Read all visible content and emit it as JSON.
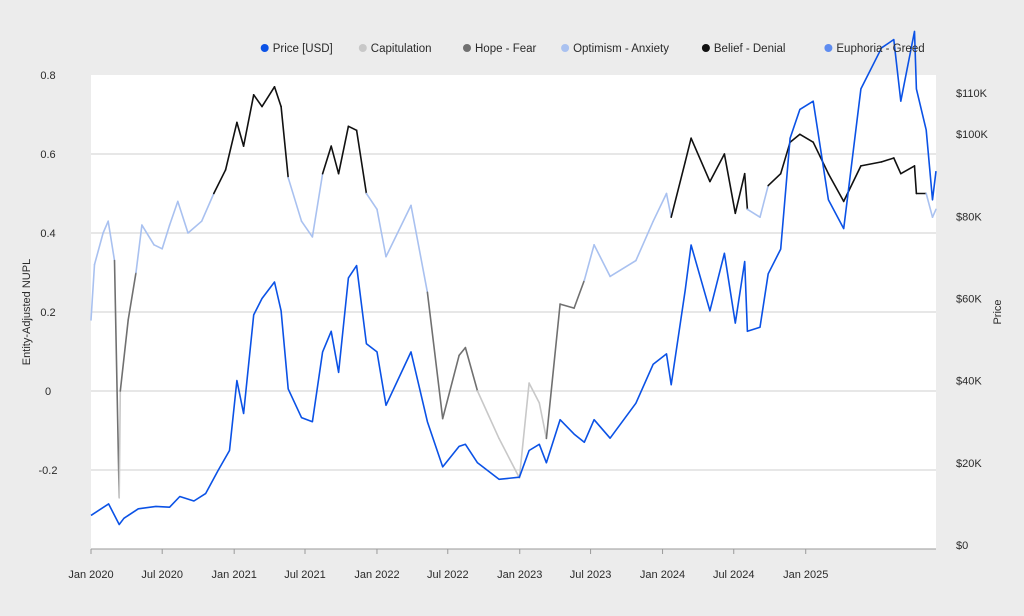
{
  "chart_data": {
    "type": "line",
    "ylabel_left": "Entity-Adjusted NUPL",
    "ylabel_right": "Price",
    "x_ticks": [
      "Jan 2020",
      "Jul 2020",
      "Jan 2021",
      "Jul 2021",
      "Jan 2022",
      "Jul 2022",
      "Jan 2023",
      "Jul 2023",
      "Jan 2024",
      "Jul 2024",
      "Jan 2025"
    ],
    "x_tick_dates": [
      "2020-01-01",
      "2020-07-01",
      "2021-01-01",
      "2021-07-01",
      "2022-01-01",
      "2022-07-01",
      "2023-01-01",
      "2023-07-01",
      "2024-01-01",
      "2024-07-01",
      "2025-01-01"
    ],
    "x_range": [
      "2020-01-01",
      "2025-11-30"
    ],
    "y_left_ticks": [
      {
        "value": 0.8,
        "label": "0.8"
      },
      {
        "value": 0.6,
        "label": "0.6"
      },
      {
        "value": 0.4,
        "label": "0.4"
      },
      {
        "value": 0.2,
        "label": "0.2"
      },
      {
        "value": 0,
        "label": "0"
      },
      {
        "value": -0.2,
        "label": "-0.2"
      }
    ],
    "y_left_range": [
      -0.39,
      0.8
    ],
    "y_right_ticks": [
      {
        "value": 110000,
        "label": "$110K"
      },
      {
        "value": 100000,
        "label": "$100K"
      },
      {
        "value": 80000,
        "label": "$80K"
      },
      {
        "value": 60000,
        "label": "$60K"
      },
      {
        "value": 40000,
        "label": "$40K"
      },
      {
        "value": 20000,
        "label": "$20K"
      },
      {
        "value": 0,
        "label": "$0"
      }
    ],
    "grid": "horizontal",
    "legend_position": "top-right",
    "legend": [
      {
        "key": "price",
        "label": "Price [USD]",
        "color": "#0b52e6"
      },
      {
        "key": "capitulation",
        "label": "Capitulation",
        "color": "#c8c8c8"
      },
      {
        "key": "hope_fear",
        "label": "Hope - Fear",
        "color": "#707070"
      },
      {
        "key": "optimism_anxiety",
        "label": "Optimism - Anxiety",
        "color": "#a9c1f0"
      },
      {
        "key": "belief_denial",
        "label": "Belief - Denial",
        "color": "#111111"
      },
      {
        "key": "euphoria_greed",
        "label": "Euphoria - Greed",
        "color": "#5e8cf0"
      }
    ],
    "series": [
      {
        "name": "Price [USD]",
        "axis": "right",
        "color": "#0b52e6",
        "points": [
          [
            "2020-01-01",
            7200
          ],
          [
            "2020-02-15",
            10000
          ],
          [
            "2020-03-13",
            5000
          ],
          [
            "2020-03-25",
            6500
          ],
          [
            "2020-05-01",
            8800
          ],
          [
            "2020-06-15",
            9400
          ],
          [
            "2020-07-20",
            9200
          ],
          [
            "2020-08-15",
            11800
          ],
          [
            "2020-09-20",
            10700
          ],
          [
            "2020-10-20",
            12500
          ],
          [
            "2020-11-20",
            18000
          ],
          [
            "2020-12-20",
            23000
          ],
          [
            "2021-01-08",
            40000
          ],
          [
            "2021-01-25",
            32000
          ],
          [
            "2021-02-20",
            56000
          ],
          [
            "2021-03-13",
            60000
          ],
          [
            "2021-04-14",
            64000
          ],
          [
            "2021-05-01",
            57000
          ],
          [
            "2021-05-19",
            38000
          ],
          [
            "2021-06-22",
            31000
          ],
          [
            "2021-07-20",
            30000
          ],
          [
            "2021-08-15",
            47000
          ],
          [
            "2021-09-06",
            52000
          ],
          [
            "2021-09-25",
            42000
          ],
          [
            "2021-10-20",
            65000
          ],
          [
            "2021-11-10",
            68000
          ],
          [
            "2021-12-05",
            49000
          ],
          [
            "2022-01-01",
            47000
          ],
          [
            "2022-01-24",
            34000
          ],
          [
            "2022-03-29",
            47000
          ],
          [
            "2022-05-10",
            30000
          ],
          [
            "2022-06-18",
            19000
          ],
          [
            "2022-07-30",
            24000
          ],
          [
            "2022-08-15",
            24500
          ],
          [
            "2022-09-15",
            20000
          ],
          [
            "2022-11-09",
            16000
          ],
          [
            "2022-12-31",
            16500
          ],
          [
            "2023-01-25",
            23000
          ],
          [
            "2023-02-20",
            24500
          ],
          [
            "2023-03-10",
            20000
          ],
          [
            "2023-04-14",
            30500
          ],
          [
            "2023-05-20",
            27000
          ],
          [
            "2023-06-15",
            25000
          ],
          [
            "2023-07-10",
            30500
          ],
          [
            "2023-08-20",
            26000
          ],
          [
            "2023-10-25",
            34500
          ],
          [
            "2023-12-08",
            44000
          ],
          [
            "2024-01-11",
            46500
          ],
          [
            "2024-01-23",
            39000
          ],
          [
            "2024-02-28",
            62000
          ],
          [
            "2024-03-14",
            73000
          ],
          [
            "2024-05-01",
            57000
          ],
          [
            "2024-06-07",
            71000
          ],
          [
            "2024-07-05",
            54000
          ],
          [
            "2024-07-29",
            69000
          ],
          [
            "2024-08-05",
            52000
          ],
          [
            "2024-09-06",
            53000
          ],
          [
            "2024-09-27",
            66000
          ],
          [
            "2024-10-29",
            72000
          ],
          [
            "2024-11-22",
            99000
          ],
          [
            "2024-12-17",
            106000
          ],
          [
            "2025-01-20",
            108000
          ],
          [
            "2025-02-28",
            84000
          ],
          [
            "2025-04-08",
            77000
          ],
          [
            "2025-05-22",
            111000
          ],
          [
            "2025-07-14",
            121000
          ],
          [
            "2025-08-14",
            123000
          ],
          [
            "2025-09-01",
            108000
          ],
          [
            "2025-10-06",
            125000
          ],
          [
            "2025-10-11",
            111000
          ],
          [
            "2025-11-05",
            101000
          ],
          [
            "2025-11-21",
            84000
          ],
          [
            "2025-11-30",
            91000
          ]
        ]
      },
      {
        "name": "Entity-Adjusted NUPL",
        "axis": "left",
        "zones_by_value": [
          {
            "key": "capitulation",
            "below": 0
          },
          {
            "key": "hope_fear",
            "from": 0,
            "below": 0.25
          },
          {
            "key": "optimism_anxiety",
            "from": 0.25,
            "below": 0.5
          },
          {
            "key": "belief_denial",
            "from": 0.5,
            "below": 0.75
          },
          {
            "key": "euphoria_greed",
            "from": 0.75
          }
        ],
        "points": [
          [
            "2020-01-01",
            0.18
          ],
          [
            "2020-01-10",
            0.32
          ],
          [
            "2020-02-01",
            0.4
          ],
          [
            "2020-02-14",
            0.43
          ],
          [
            "2020-03-01",
            0.33
          ],
          [
            "2020-03-13",
            -0.27
          ],
          [
            "2020-03-16",
            0.0
          ],
          [
            "2020-04-05",
            0.18
          ],
          [
            "2020-04-25",
            0.3
          ],
          [
            "2020-05-10",
            0.42
          ],
          [
            "2020-06-10",
            0.37
          ],
          [
            "2020-07-01",
            0.36
          ],
          [
            "2020-07-20",
            0.42
          ],
          [
            "2020-08-10",
            0.48
          ],
          [
            "2020-09-05",
            0.4
          ],
          [
            "2020-10-10",
            0.43
          ],
          [
            "2020-11-10",
            0.5
          ],
          [
            "2020-12-10",
            0.56
          ],
          [
            "2021-01-08",
            0.68
          ],
          [
            "2021-01-25",
            0.62
          ],
          [
            "2021-02-20",
            0.75
          ],
          [
            "2021-03-13",
            0.72
          ],
          [
            "2021-04-14",
            0.77
          ],
          [
            "2021-05-01",
            0.72
          ],
          [
            "2021-05-19",
            0.54
          ],
          [
            "2021-06-22",
            0.43
          ],
          [
            "2021-07-20",
            0.39
          ],
          [
            "2021-08-15",
            0.55
          ],
          [
            "2021-09-06",
            0.62
          ],
          [
            "2021-09-25",
            0.55
          ],
          [
            "2021-10-20",
            0.67
          ],
          [
            "2021-11-10",
            0.66
          ],
          [
            "2021-12-05",
            0.5
          ],
          [
            "2022-01-01",
            0.46
          ],
          [
            "2022-01-24",
            0.34
          ],
          [
            "2022-03-29",
            0.47
          ],
          [
            "2022-05-10",
            0.25
          ],
          [
            "2022-06-18",
            -0.07
          ],
          [
            "2022-07-30",
            0.09
          ],
          [
            "2022-08-15",
            0.11
          ],
          [
            "2022-09-15",
            0.0
          ],
          [
            "2022-11-09",
            -0.12
          ],
          [
            "2022-12-31",
            -0.22
          ],
          [
            "2023-01-25",
            0.02
          ],
          [
            "2023-02-20",
            -0.03
          ],
          [
            "2023-03-10",
            -0.12
          ],
          [
            "2023-04-14",
            0.22
          ],
          [
            "2023-05-20",
            0.21
          ],
          [
            "2023-06-15",
            0.28
          ],
          [
            "2023-07-10",
            0.37
          ],
          [
            "2023-08-20",
            0.29
          ],
          [
            "2023-10-25",
            0.33
          ],
          [
            "2023-12-08",
            0.43
          ],
          [
            "2024-01-11",
            0.5
          ],
          [
            "2024-01-23",
            0.44
          ],
          [
            "2024-02-28",
            0.58
          ],
          [
            "2024-03-14",
            0.64
          ],
          [
            "2024-05-01",
            0.53
          ],
          [
            "2024-06-07",
            0.6
          ],
          [
            "2024-07-05",
            0.45
          ],
          [
            "2024-07-29",
            0.55
          ],
          [
            "2024-08-05",
            0.46
          ],
          [
            "2024-09-06",
            0.44
          ],
          [
            "2024-09-27",
            0.52
          ],
          [
            "2024-10-29",
            0.55
          ],
          [
            "2024-11-22",
            0.63
          ],
          [
            "2024-12-17",
            0.65
          ],
          [
            "2025-01-20",
            0.63
          ],
          [
            "2025-02-28",
            0.55
          ],
          [
            "2025-04-08",
            0.48
          ],
          [
            "2025-05-22",
            0.57
          ],
          [
            "2025-07-14",
            0.58
          ],
          [
            "2025-08-14",
            0.59
          ],
          [
            "2025-09-01",
            0.55
          ],
          [
            "2025-10-06",
            0.57
          ],
          [
            "2025-10-11",
            0.5
          ],
          [
            "2025-11-05",
            0.5
          ],
          [
            "2025-11-21",
            0.44
          ],
          [
            "2025-11-30",
            0.46
          ]
        ]
      }
    ]
  }
}
